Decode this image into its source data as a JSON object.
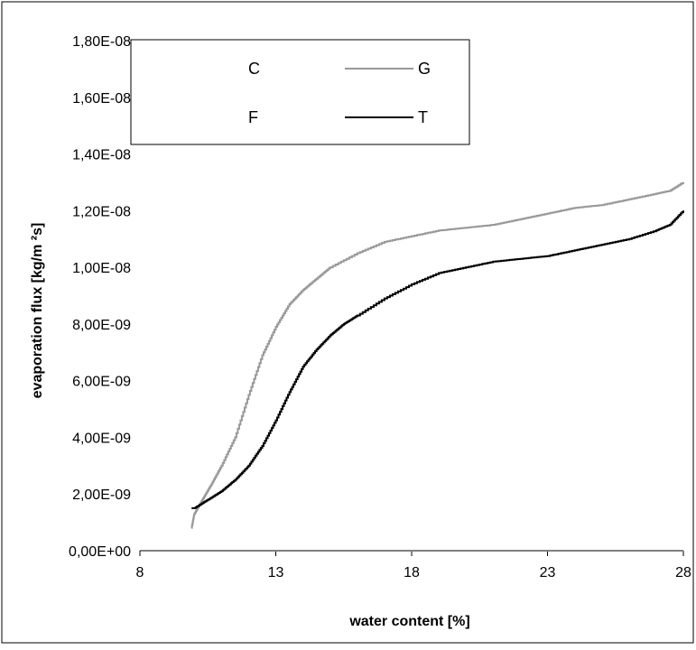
{
  "chart_data": {
    "type": "line",
    "xlabel": "water content [%]",
    "ylabel": "evaporation flux [kg/m   ²s]",
    "xlim": [
      8,
      28
    ],
    "ylim": [
      0,
      1.8e-08
    ],
    "x_ticks": [
      8,
      13,
      18,
      23,
      28
    ],
    "x_tick_labels": [
      "8",
      "13",
      "18",
      "23",
      "28"
    ],
    "y_ticks": [
      0,
      2e-09,
      4e-09,
      6e-09,
      8e-09,
      1e-08,
      1.2e-08,
      1.4e-08,
      1.6e-08,
      1.8e-08
    ],
    "y_tick_labels": [
      "0,00E+00",
      "2,00E-09",
      "4,00E-09",
      "6,00E-09",
      "8,00E-09",
      "1,00E-08",
      "1,20E-08",
      "1,40E-08",
      "1,60E-08",
      "1,80E-08"
    ],
    "grid": false,
    "legend_position": "top-left",
    "series": [
      {
        "name": "C",
        "color": "#ffffff",
        "x": [
          9.9,
          28
        ],
        "y": [
          0,
          0
        ]
      },
      {
        "name": "G",
        "color": "#999999",
        "x": [
          9.9,
          10.0,
          10.3,
          10.6,
          11.0,
          11.5,
          12.0,
          12.5,
          13.0,
          13.5,
          14.0,
          14.5,
          15.0,
          16.0,
          17.0,
          18.0,
          19.0,
          20.0,
          21.0,
          22.0,
          23.0,
          24.0,
          25.0,
          26.0,
          27.0,
          27.5,
          28.0
        ],
        "y": [
          8e-10,
          1.3e-09,
          1.8e-09,
          2.3e-09,
          3e-09,
          4e-09,
          5.5e-09,
          6.9e-09,
          7.9e-09,
          8.7e-09,
          9.2e-09,
          9.6e-09,
          1e-08,
          1.05e-08,
          1.09e-08,
          1.11e-08,
          1.13e-08,
          1.14e-08,
          1.15e-08,
          1.17e-08,
          1.19e-08,
          1.21e-08,
          1.22e-08,
          1.24e-08,
          1.26e-08,
          1.27e-08,
          1.3e-08
        ]
      },
      {
        "name": "F",
        "color": "#ffffff",
        "x": [
          9.9,
          28
        ],
        "y": [
          0,
          0
        ]
      },
      {
        "name": "T",
        "color": "#000000",
        "x": [
          9.9,
          10.0,
          10.5,
          11.0,
          11.5,
          12.0,
          12.5,
          13.0,
          13.5,
          14.0,
          14.5,
          15.0,
          15.5,
          16.0,
          17.0,
          18.0,
          19.0,
          20.0,
          21.0,
          22.0,
          23.0,
          24.0,
          25.0,
          26.0,
          27.0,
          27.5,
          28.0
        ],
        "y": [
          1.5e-09,
          1.5e-09,
          1.8e-09,
          2.1e-09,
          2.5e-09,
          3e-09,
          3.7e-09,
          4.6e-09,
          5.6e-09,
          6.5e-09,
          7.1e-09,
          7.6e-09,
          8e-09,
          8.3e-09,
          8.9e-09,
          9.4e-09,
          9.8e-09,
          1e-08,
          1.02e-08,
          1.03e-08,
          1.04e-08,
          1.06e-08,
          1.08e-08,
          1.1e-08,
          1.13e-08,
          1.15e-08,
          1.2e-08
        ]
      }
    ]
  }
}
